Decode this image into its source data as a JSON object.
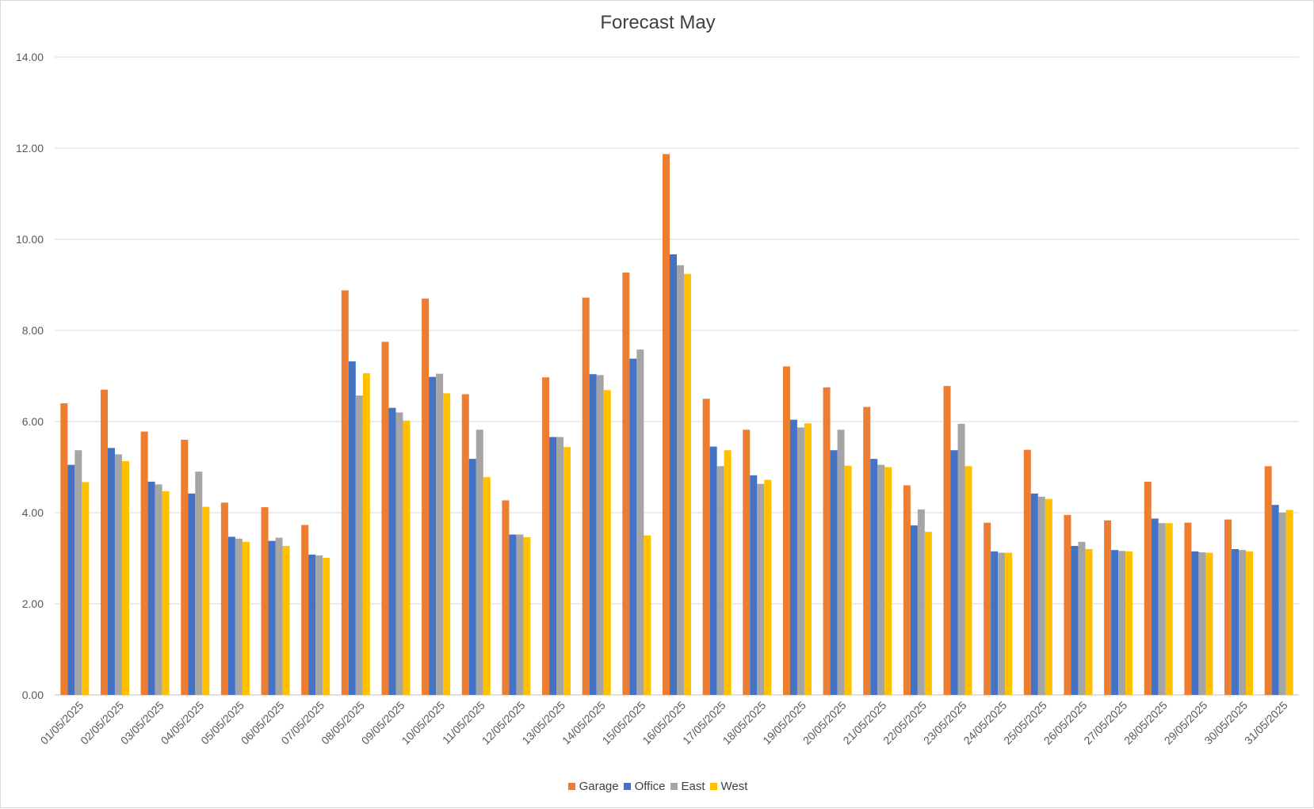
{
  "chart_data": {
    "type": "bar",
    "title": "Forecast May",
    "xlabel": "",
    "ylabel": "",
    "ylim": [
      0,
      14
    ],
    "yticks": [
      "0.00",
      "2.00",
      "4.00",
      "6.00",
      "8.00",
      "10.00",
      "12.00",
      "14.00"
    ],
    "grid": true,
    "legend_position": "bottom",
    "categories": [
      "01/05/2025",
      "02/05/2025",
      "03/05/2025",
      "04/05/2025",
      "05/05/2025",
      "06/05/2025",
      "07/05/2025",
      "08/05/2025",
      "09/05/2025",
      "10/05/2025",
      "11/05/2025",
      "12/05/2025",
      "13/05/2025",
      "14/05/2025",
      "15/05/2025",
      "16/05/2025",
      "17/05/2025",
      "18/05/2025",
      "19/05/2025",
      "20/05/2025",
      "21/05/2025",
      "22/05/2025",
      "23/05/2025",
      "24/05/2025",
      "25/05/2025",
      "26/05/2025",
      "27/05/2025",
      "28/05/2025",
      "29/05/2025",
      "30/05/2025",
      "31/05/2025"
    ],
    "series": [
      {
        "name": "Garage",
        "color": "#ed7d31",
        "values": [
          6.4,
          6.7,
          5.78,
          5.6,
          4.22,
          4.12,
          3.73,
          8.88,
          7.75,
          8.7,
          6.6,
          4.27,
          6.97,
          8.72,
          9.27,
          11.87,
          6.5,
          5.82,
          7.21,
          6.75,
          6.32,
          4.6,
          6.78,
          3.78,
          5.38,
          3.95,
          3.83,
          4.68,
          3.78,
          3.85,
          5.02
        ]
      },
      {
        "name": "Office",
        "color": "#4472c4",
        "values": [
          5.05,
          5.42,
          4.68,
          4.42,
          3.47,
          3.38,
          3.08,
          7.32,
          6.3,
          6.98,
          5.18,
          3.52,
          5.66,
          7.04,
          7.38,
          9.67,
          5.45,
          4.82,
          6.04,
          5.37,
          5.18,
          3.72,
          5.37,
          3.15,
          4.42,
          3.27,
          3.18,
          3.87,
          3.15,
          3.2,
          4.17
        ]
      },
      {
        "name": "East",
        "color": "#a5a5a5",
        "values": [
          5.37,
          5.28,
          4.62,
          4.9,
          3.43,
          3.45,
          3.06,
          6.57,
          6.2,
          7.05,
          5.82,
          3.52,
          5.66,
          7.02,
          7.58,
          9.43,
          5.02,
          4.63,
          5.87,
          5.82,
          5.05,
          4.07,
          5.95,
          3.12,
          4.35,
          3.36,
          3.16,
          3.77,
          3.13,
          3.18,
          4.0
        ]
      },
      {
        "name": "West",
        "color": "#ffc000",
        "values": [
          4.67,
          5.13,
          4.47,
          4.13,
          3.36,
          3.27,
          3.01,
          7.06,
          6.02,
          6.62,
          4.78,
          3.46,
          5.44,
          6.69,
          3.5,
          9.24,
          5.37,
          4.72,
          5.96,
          5.03,
          5.0,
          3.58,
          5.02,
          3.12,
          4.3,
          3.2,
          3.15,
          3.77,
          3.12,
          3.15,
          4.06
        ]
      }
    ]
  }
}
